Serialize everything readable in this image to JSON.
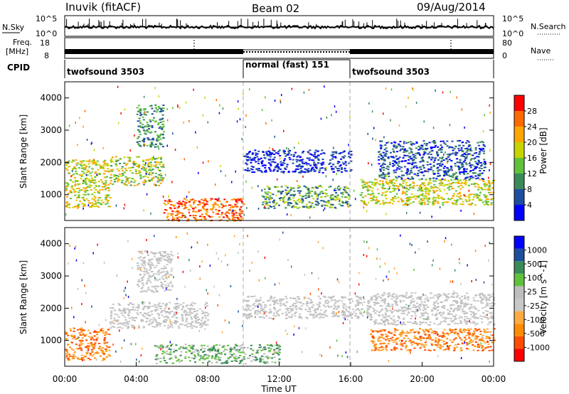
{
  "header": {
    "title": "Inuvik (fitACF)",
    "beam": "Beam 02",
    "date": "09/Aug/2014"
  },
  "noise_panel": {
    "left_label": "N.Sky",
    "right_label": "N.Search",
    "left_ticks": [
      "10^5",
      "10^0"
    ],
    "right_ticks": [
      "10^5",
      "10^0"
    ]
  },
  "freq_panel": {
    "left_label_1": "Freq.",
    "left_label_2": "[MHz]",
    "right_label": "Nave",
    "left_ticks": [
      "18",
      "8"
    ],
    "right_ticks": [
      "80",
      "0"
    ]
  },
  "cpid": {
    "label": "CPID",
    "segments": [
      {
        "name": "twofsound 3503",
        "start": 0,
        "end": 10
      },
      {
        "name": "normal (fast) 151",
        "start": 10,
        "end": 16
      },
      {
        "name": "twofsound 3503",
        "start": 16,
        "end": 24
      }
    ]
  },
  "colors": {
    "power": [
      "#0000ff",
      "#1e4e9e",
      "#3a8a5a",
      "#5fc23a",
      "#c8d400",
      "#ffa500",
      "#ff6a00",
      "#ff0000"
    ],
    "velocity": [
      "#ff0000",
      "#ff4c00",
      "#ff8c00",
      "#ffaa40",
      "#c8c8c8",
      "#bebebe",
      "#5fc23a",
      "#3a8a5a",
      "#1e4e9e",
      "#0000ff"
    ]
  },
  "chart_data": [
    {
      "type": "heatmap",
      "name": "power",
      "xlabel": "",
      "ylabel": "Slant Range [km]",
      "xlim": [
        0,
        24
      ],
      "ylim": [
        200,
        4500
      ],
      "yticks": [
        1000,
        2000,
        3000,
        4000
      ],
      "colorbar": {
        "label": "Power [dB]",
        "ticks": [
          "4",
          "8",
          "12",
          "16",
          "20",
          "24",
          "28"
        ],
        "range": [
          0,
          30
        ]
      },
      "echo_regions": [
        {
          "t": [
            0,
            2.5
          ],
          "r": [
            600,
            2100
          ],
          "value": "16-24"
        },
        {
          "t": [
            2.5,
            5.5
          ],
          "r": [
            1300,
            2200
          ],
          "value": "12-24"
        },
        {
          "t": [
            4.0,
            5.5
          ],
          "r": [
            2500,
            3800
          ],
          "value": "8-16"
        },
        {
          "t": [
            5.5,
            10
          ],
          "r": [
            200,
            900
          ],
          "value": "24-30"
        },
        {
          "t": [
            10,
            16
          ],
          "r": [
            1700,
            2400
          ],
          "value": "4-8"
        },
        {
          "t": [
            11,
            16
          ],
          "r": [
            600,
            1300
          ],
          "value": "8-20"
        },
        {
          "t": [
            16.5,
            24
          ],
          "r": [
            700,
            1500
          ],
          "value": "16-24"
        },
        {
          "t": [
            17.5,
            23.5
          ],
          "r": [
            1500,
            2700
          ],
          "value": "4-12"
        }
      ]
    },
    {
      "type": "heatmap",
      "name": "velocity",
      "xlabel": "Time UT",
      "ylabel": "Slant Range [km]",
      "xlim": [
        0,
        24
      ],
      "ylim": [
        200,
        4500
      ],
      "yticks": [
        1000,
        2000,
        3000,
        4000
      ],
      "xticks": [
        "00:00",
        "04:00",
        "08:00",
        "12:00",
        "16:00",
        "20:00",
        "00:00"
      ],
      "colorbar": {
        "label": "Velocity [m s^-1]",
        "ticks": [
          "-1000",
          "-500",
          "-100",
          "-25",
          "25",
          "100",
          "500",
          "1000"
        ],
        "range": [
          -1000,
          1000
        ]
      },
      "echo_regions": [
        {
          "t": [
            0,
            2.5
          ],
          "r": [
            400,
            1400
          ],
          "value": "-500 to -100"
        },
        {
          "t": [
            2.5,
            8
          ],
          "r": [
            1400,
            2200
          ],
          "value": "-25 to 25"
        },
        {
          "t": [
            4,
            6
          ],
          "r": [
            2500,
            3800
          ],
          "value": "-25 to 25"
        },
        {
          "t": [
            5,
            12
          ],
          "r": [
            300,
            900
          ],
          "value": "25 to 500"
        },
        {
          "t": [
            10,
            17
          ],
          "r": [
            1700,
            2400
          ],
          "value": "-25 to 25"
        },
        {
          "t": [
            17,
            24
          ],
          "r": [
            700,
            1400
          ],
          "value": "-500 to -100"
        },
        {
          "t": [
            17,
            24
          ],
          "r": [
            1500,
            2500
          ],
          "value": "-25 to 25"
        }
      ]
    }
  ]
}
